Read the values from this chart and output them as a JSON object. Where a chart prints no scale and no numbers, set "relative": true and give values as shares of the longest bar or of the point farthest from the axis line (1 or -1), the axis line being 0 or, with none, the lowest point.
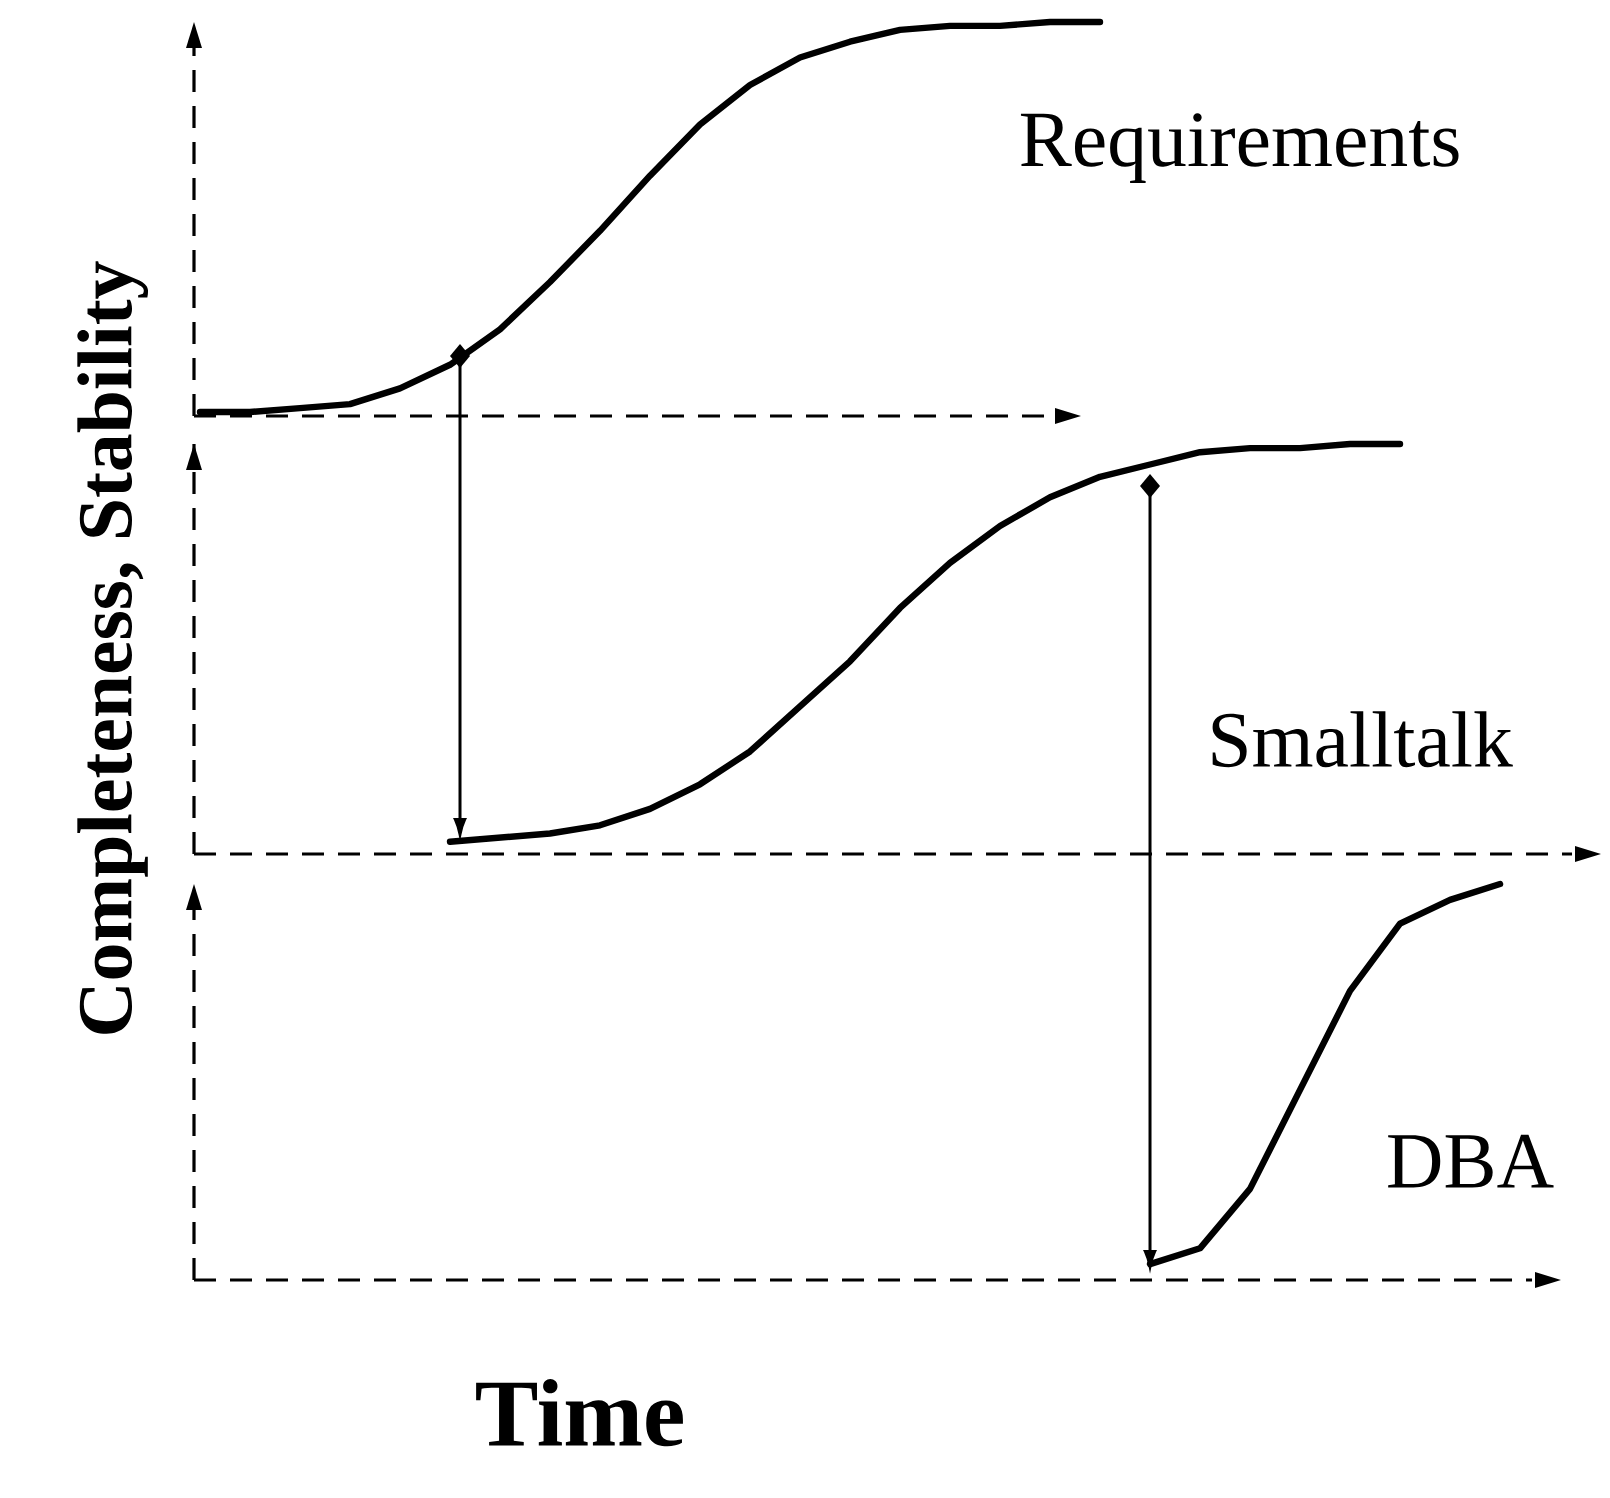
{
  "chart_data": [
    {
      "type": "line",
      "relative": true,
      "marker": "none",
      "line_style": "solid",
      "categories": [
        null,
        null,
        null,
        null,
        null,
        null,
        null,
        null,
        null,
        null,
        null,
        null,
        null,
        null,
        null,
        null,
        null,
        null,
        null,
        null,
        null,
        null,
        null,
        null,
        null,
        null,
        null,
        null
      ],
      "series": [
        {
          "name": "Requirements",
          "color": "#000000",
          "values": [
            0.01,
            0.01,
            0.02,
            0.03,
            0.07,
            0.13,
            0.22,
            0.34,
            0.47,
            0.61,
            0.74,
            0.84,
            0.91,
            0.95,
            0.98,
            0.99,
            0.99,
            1,
            1,
            null,
            null,
            null,
            null,
            null,
            null,
            null,
            null,
            null
          ]
        }
      ]
    },
    {
      "type": "line",
      "relative": true,
      "marker": "none",
      "line_style": "solid",
      "ylabel": "Completeness, Stability",
      "categories": [
        null,
        null,
        null,
        null,
        null,
        null,
        null,
        null,
        null,
        null,
        null,
        null,
        null,
        null,
        null,
        null,
        null,
        null,
        null,
        null,
        null,
        null,
        null,
        null,
        null,
        null,
        null,
        null
      ],
      "series": [
        {
          "name": "Smalltalk",
          "color": "#000000",
          "values": [
            null,
            null,
            null,
            null,
            null,
            0.03,
            0.04,
            0.05,
            0.07,
            0.11,
            0.17,
            0.25,
            0.36,
            0.47,
            0.6,
            0.71,
            0.8,
            0.87,
            0.92,
            0.95,
            0.98,
            0.99,
            0.99,
            1,
            1,
            null,
            null,
            null
          ]
        }
      ]
    },
    {
      "type": "line",
      "relative": true,
      "marker": "none",
      "line_style": "solid",
      "xlabel": "Time",
      "categories": [
        null,
        null,
        null,
        null,
        null,
        null,
        null,
        null,
        null,
        null,
        null,
        null,
        null,
        null,
        null,
        null,
        null,
        null,
        null,
        null,
        null,
        null,
        null,
        null,
        null,
        null,
        null,
        null
      ],
      "series": [
        {
          "name": "DBA",
          "color": "#000000",
          "values": [
            null,
            null,
            null,
            null,
            null,
            null,
            null,
            null,
            null,
            null,
            null,
            null,
            null,
            null,
            null,
            null,
            null,
            null,
            null,
            0.04,
            0.08,
            0.23,
            0.48,
            0.73,
            0.9,
            0.96,
            1,
            null
          ]
        }
      ]
    }
  ]
}
